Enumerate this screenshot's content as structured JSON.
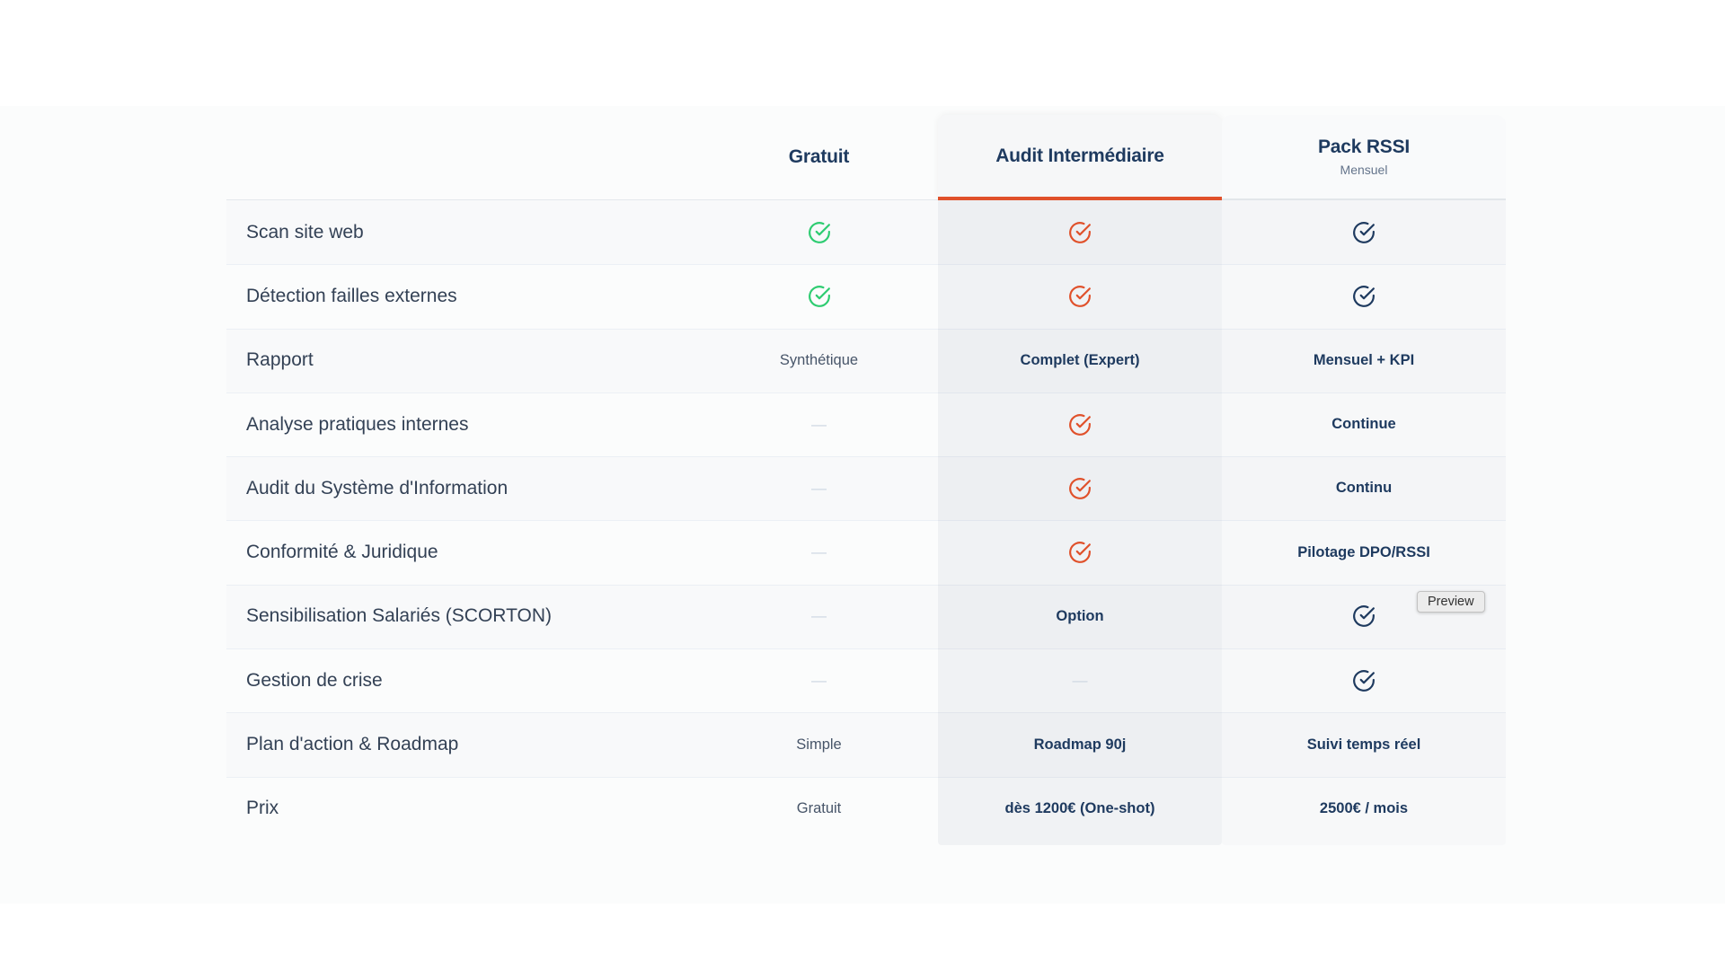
{
  "header": {
    "columns": [
      {
        "id": "gratuit",
        "label": "Gratuit"
      },
      {
        "id": "audit",
        "label": "Audit Intermédiaire",
        "highlighted": true
      },
      {
        "id": "pack",
        "label": "Pack RSSI",
        "sublabel": "Mensuel"
      }
    ]
  },
  "rows": [
    {
      "feature": "Scan site web",
      "cells": [
        {
          "type": "check",
          "variant": "green"
        },
        {
          "type": "check",
          "variant": "orange"
        },
        {
          "type": "check",
          "variant": "navy"
        }
      ]
    },
    {
      "feature": "Détection failles externes",
      "cells": [
        {
          "type": "check",
          "variant": "green"
        },
        {
          "type": "check",
          "variant": "orange"
        },
        {
          "type": "check",
          "variant": "navy"
        }
      ]
    },
    {
      "feature": "Rapport",
      "cells": [
        {
          "type": "text",
          "value": "Synthétique",
          "emphasis": false
        },
        {
          "type": "text",
          "value": "Complet (Expert)",
          "emphasis": true
        },
        {
          "type": "text",
          "value": "Mensuel + KPI",
          "emphasis": true
        }
      ]
    },
    {
      "feature": "Analyse pratiques internes",
      "cells": [
        {
          "type": "dash"
        },
        {
          "type": "check",
          "variant": "orange"
        },
        {
          "type": "text",
          "value": "Continue",
          "emphasis": true
        }
      ]
    },
    {
      "feature": "Audit du Système d'Information",
      "cells": [
        {
          "type": "dash"
        },
        {
          "type": "check",
          "variant": "orange"
        },
        {
          "type": "text",
          "value": "Continu",
          "emphasis": true
        }
      ]
    },
    {
      "feature": "Conformité & Juridique",
      "cells": [
        {
          "type": "dash"
        },
        {
          "type": "check",
          "variant": "orange"
        },
        {
          "type": "text",
          "value": "Pilotage DPO/RSSI",
          "emphasis": true
        }
      ]
    },
    {
      "feature": "Sensibilisation Salariés (SCORTON)",
      "cells": [
        {
          "type": "dash"
        },
        {
          "type": "text",
          "value": "Option",
          "emphasis": true
        },
        {
          "type": "check",
          "variant": "navy"
        }
      ]
    },
    {
      "feature": "Gestion de crise",
      "cells": [
        {
          "type": "dash"
        },
        {
          "type": "dash"
        },
        {
          "type": "check",
          "variant": "navy"
        }
      ]
    },
    {
      "feature": "Plan d'action & Roadmap",
      "cells": [
        {
          "type": "text",
          "value": "Simple",
          "emphasis": false
        },
        {
          "type": "text",
          "value": "Roadmap 90j",
          "emphasis": true
        },
        {
          "type": "text",
          "value": "Suivi temps réel",
          "emphasis": true
        }
      ]
    },
    {
      "feature": "Prix",
      "cells": [
        {
          "type": "text",
          "value": "Gratuit",
          "emphasis": false
        },
        {
          "type": "text",
          "value": "dès 1200€ (One-shot)",
          "emphasis": true
        },
        {
          "type": "text",
          "value": "2500€ / mois",
          "emphasis": true
        }
      ]
    }
  ],
  "tooltip": {
    "label": "Preview"
  },
  "glyphs": {
    "dash": "—"
  },
  "colors": {
    "accent_orange": "#e0512b",
    "check_green": "#2ecc71",
    "check_navy": "#1e3a5f",
    "heading_navy": "#1e3a5f",
    "stripe": "#f8f9fa"
  }
}
